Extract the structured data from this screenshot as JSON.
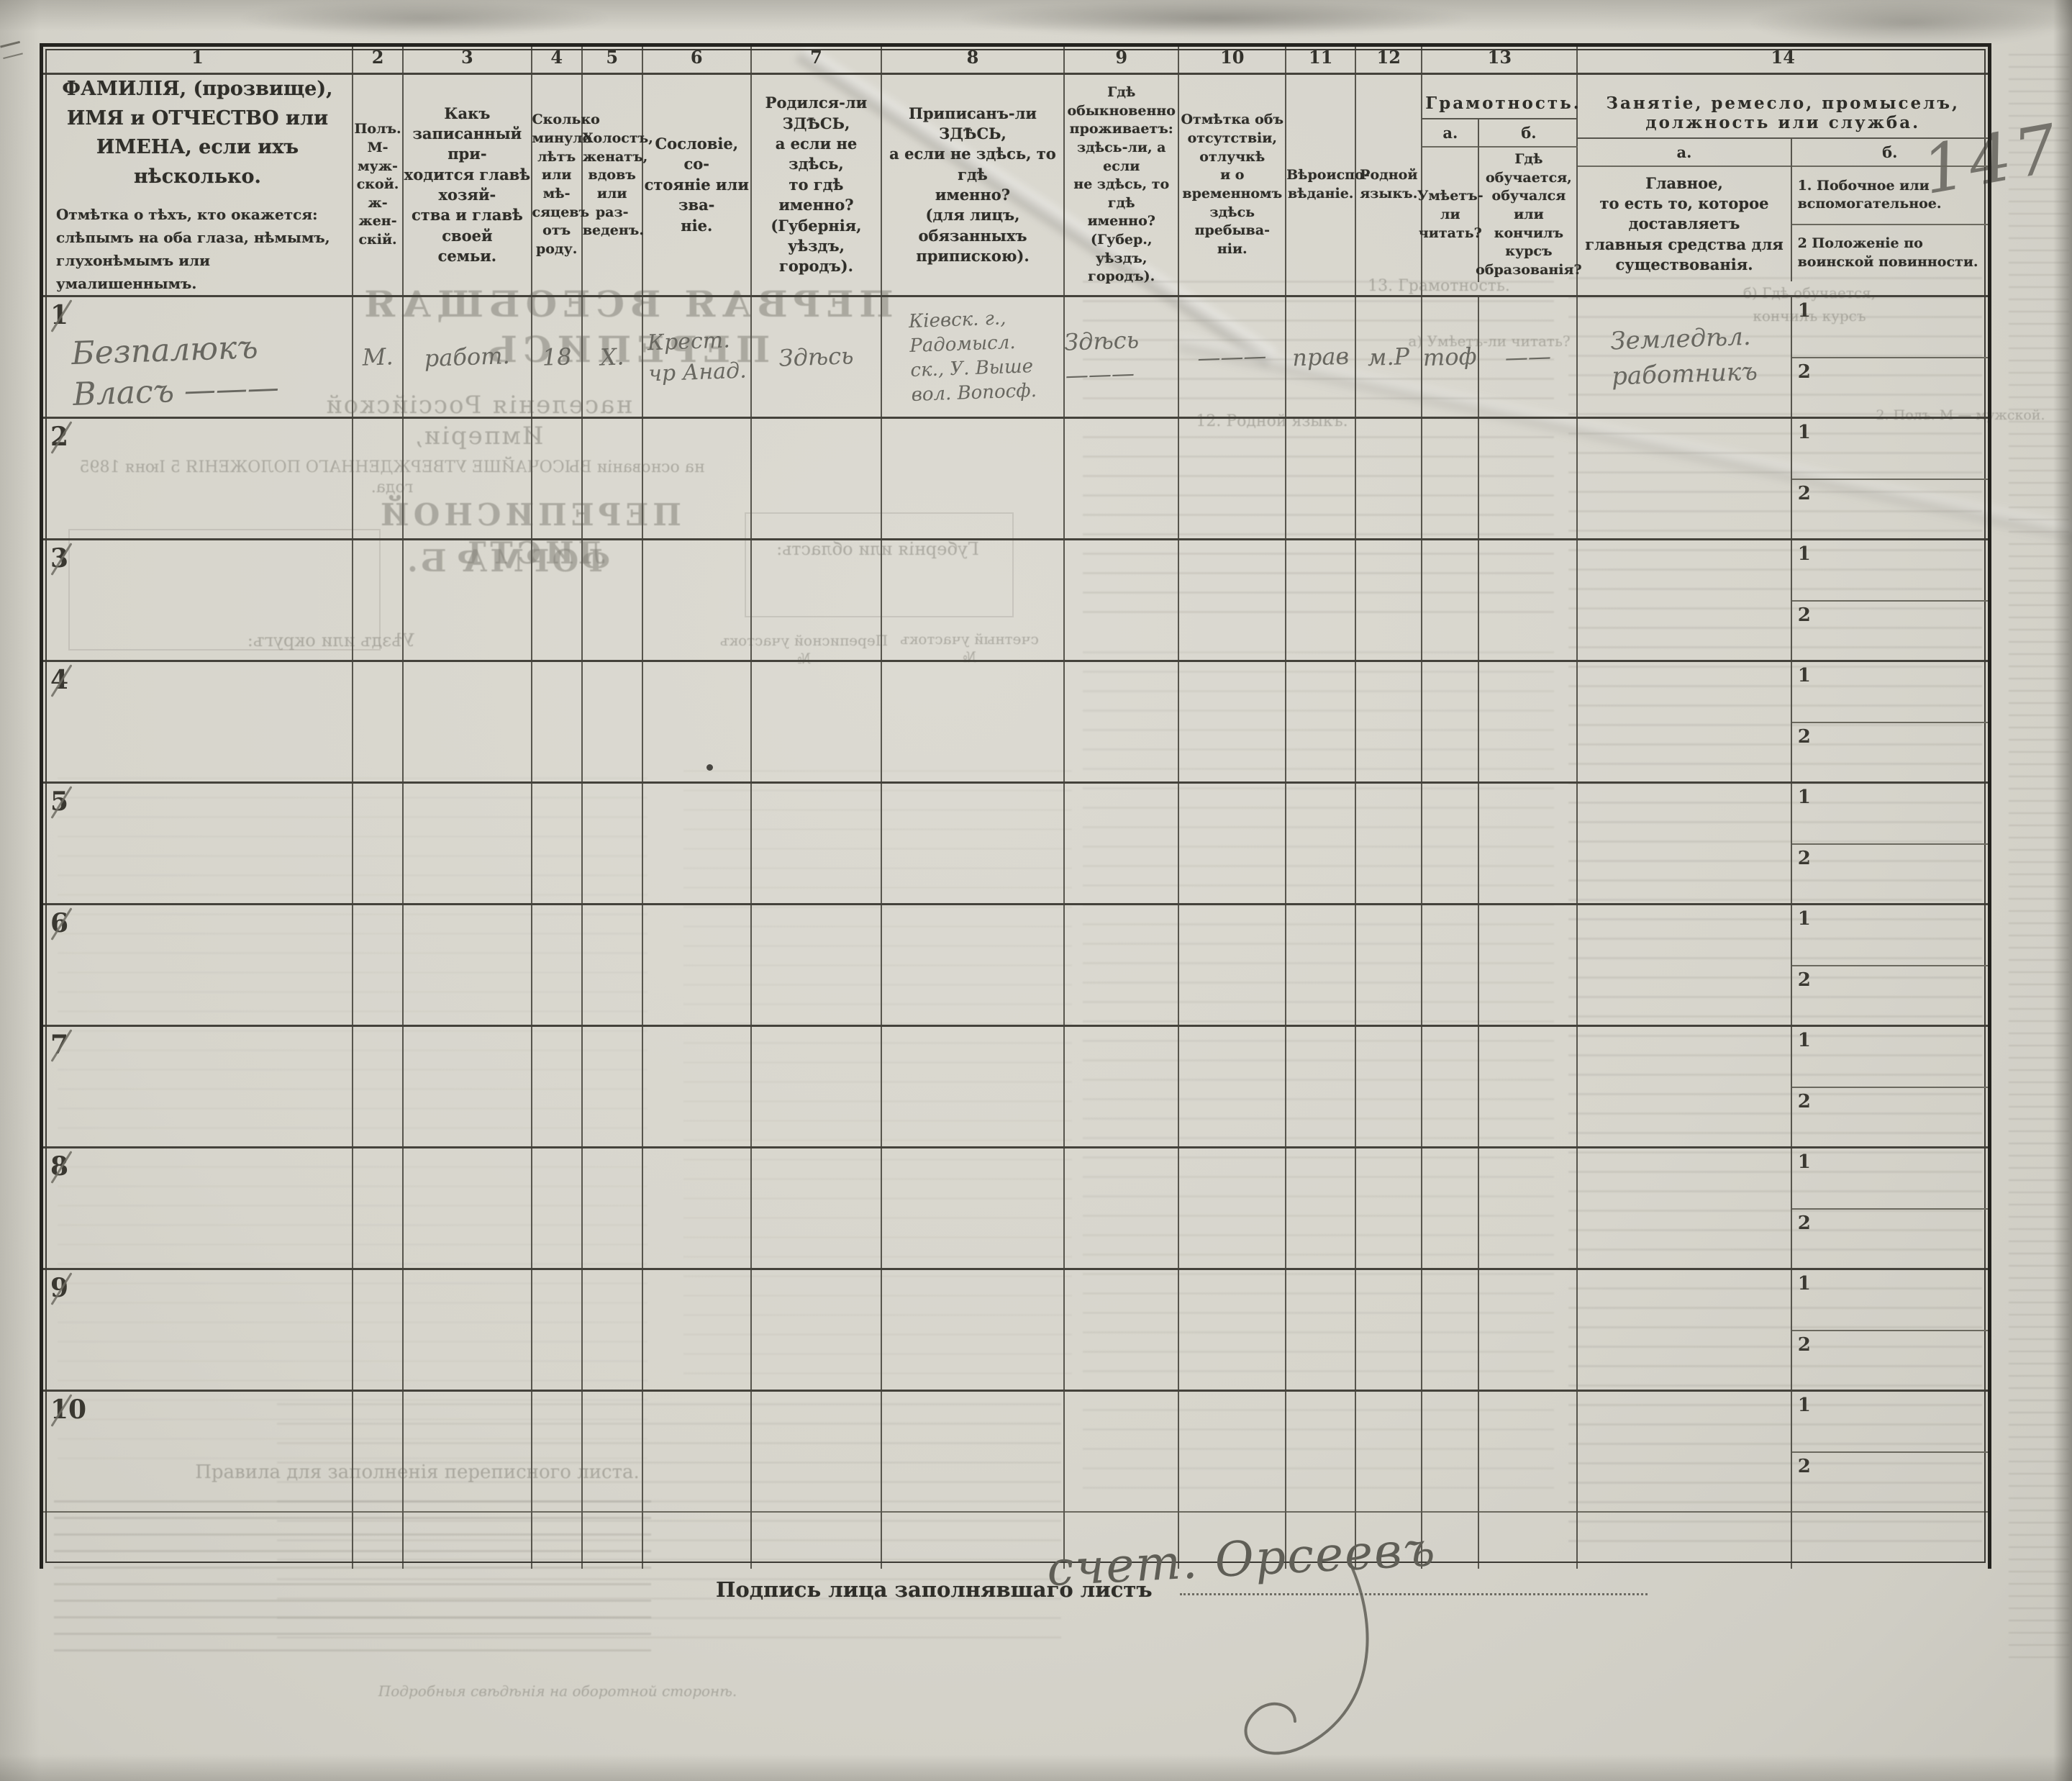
{
  "sheet": {
    "page_number_handwritten": "147",
    "signature": {
      "label": "Подпись лица заполнявшаго листъ",
      "value": "счет. Орсеевъ"
    }
  },
  "table": {
    "col_numbers": [
      "1",
      "2",
      "3",
      "4",
      "5",
      "6",
      "7",
      "8",
      "9",
      "10",
      "11",
      "12",
      "13",
      "14"
    ],
    "headers": {
      "c1_title": "ФАМИЛІЯ, (прозвище), ИМЯ и ОТЧЕСТВО или ИМЕНА, если ихъ нѣсколько.",
      "c1_note": "Отмѣтка о тѣхъ, кто окажется: слѣпымъ на оба глаза, нѣмымъ, глухонѣмымъ или умалишеннымъ.",
      "c2": "Полъ.\nМ-муж-\nской.\nж-жен-\nскій.",
      "c3": "Какъ записанный при-\nходится главѣ хозяй-\nства и главѣ своей\nсемьи.",
      "c4": "Сколько\nминуло\nлѣтъ\nили мѣ-\nсяцевъ\nотъ роду.",
      "c5": "Холостъ,\nженатъ,\nвдовъ\nили раз-\nведенъ.",
      "c6": "Сословіе, со-\nстояніе или зва-\nніе.",
      "c7": "Родился-ли ЗДѢСЬ,\nа если не здѣсь,\nто гдѣ именно?\n(Губернія, уѣздъ, городъ).",
      "c8": "Приписанъ-ли ЗДѢСЬ,\nа если не здѣсь, то гдѣ\nименно?\n(для лицъ, обязанныхъ\nприпискою).",
      "c9": "Гдѣ обыкновенно\nпроживаетъ:\nздѣсь-ли, а если\nне здѣсь, то гдѣ\nименно?\n(Губер., уѣздъ, городъ).",
      "c10": "Отмѣтка объ\nотсутствіи, отлучкѣ\nи о временномъ\nздѣсь пребыва-\nніи.",
      "c11": "Вѣроиспо-\nвѣданіе.",
      "c12": "Родной\nязыкъ.",
      "c13_title": "Грамотность.",
      "c13a_label": "а.",
      "c13a": "Умѣетъ-\nли\nчитать?",
      "c13b_label": "б.",
      "c13b": "Гдѣ обучается,\nобучался или\nкончилъ курсъ\nобразованія?",
      "c14_title": "Занятіе, ремесло, промыселъ, должность или служба.",
      "c14a_label": "а.",
      "c14a": "Главное,\nто есть то, которое доставляетъ\nглавныя средства для существованія.",
      "c14b_label": "б.",
      "c14b_row1": "1. Побочное или вспомогательное.",
      "c14b_row2": "2 Положеніе по воинской повинности.",
      "c14b_sub1": "1",
      "c14b_sub2": "2"
    },
    "rows": [
      {
        "num": "1",
        "name": "Безпалюкъ\nВласъ ———",
        "sex": "М.",
        "relation": "работ.",
        "age": "18",
        "marital": "Х.",
        "estate": "Крест.\nчр Анад.",
        "birthplace": "Здѣсь",
        "registered": "Кіевск. г.,\nРадомысл.\nск., У. Выше\nвол. Вопосф.",
        "residence": "Здѣсь ———",
        "absence": "———",
        "faith": "прав",
        "language": "м.Р",
        "literacy_read": "тоф",
        "literacy_edu": "——",
        "occupation_main": "Земледѣл.\nработникъ",
        "occupation_side": "",
        "military": ""
      },
      {
        "num": "2",
        "name": "",
        "sex": "",
        "relation": "",
        "age": "",
        "marital": "",
        "estate": "",
        "birthplace": "",
        "registered": "",
        "residence": "",
        "absence": "",
        "faith": "",
        "language": "",
        "literacy_read": "",
        "literacy_edu": "",
        "occupation_main": "",
        "occupation_side": "",
        "military": ""
      },
      {
        "num": "3",
        "name": "",
        "sex": "",
        "relation": "",
        "age": "",
        "marital": "",
        "estate": "",
        "birthplace": "",
        "registered": "",
        "residence": "",
        "absence": "",
        "faith": "",
        "language": "",
        "literacy_read": "",
        "literacy_edu": "",
        "occupation_main": "",
        "occupation_side": "",
        "military": ""
      },
      {
        "num": "4",
        "name": "",
        "sex": "",
        "relation": "",
        "age": "",
        "marital": "",
        "estate": "",
        "birthplace": "",
        "registered": "",
        "residence": "",
        "absence": "",
        "faith": "",
        "language": "",
        "literacy_read": "",
        "literacy_edu": "",
        "occupation_main": "",
        "occupation_side": "",
        "military": ""
      },
      {
        "num": "5",
        "name": "",
        "sex": "",
        "relation": "",
        "age": "",
        "marital": "",
        "estate": "",
        "birthplace": "",
        "registered": "",
        "residence": "",
        "absence": "",
        "faith": "",
        "language": "",
        "literacy_read": "",
        "literacy_edu": "",
        "occupation_main": "",
        "occupation_side": "",
        "military": ""
      },
      {
        "num": "6",
        "name": "",
        "sex": "",
        "relation": "",
        "age": "",
        "marital": "",
        "estate": "",
        "birthplace": "",
        "registered": "",
        "residence": "",
        "absence": "",
        "faith": "",
        "language": "",
        "literacy_read": "",
        "literacy_edu": "",
        "occupation_main": "",
        "occupation_side": "",
        "military": ""
      },
      {
        "num": "7",
        "name": "",
        "sex": "",
        "relation": "",
        "age": "",
        "marital": "",
        "estate": "",
        "birthplace": "",
        "registered": "",
        "residence": "",
        "absence": "",
        "faith": "",
        "language": "",
        "literacy_read": "",
        "literacy_edu": "",
        "occupation_main": "",
        "occupation_side": "",
        "military": ""
      },
      {
        "num": "8",
        "name": "",
        "sex": "",
        "relation": "",
        "age": "",
        "marital": "",
        "estate": "",
        "birthplace": "",
        "registered": "",
        "residence": "",
        "absence": "",
        "faith": "",
        "language": "",
        "literacy_read": "",
        "literacy_edu": "",
        "occupation_main": "",
        "occupation_side": "",
        "military": ""
      },
      {
        "num": "9",
        "name": "",
        "sex": "",
        "relation": "",
        "age": "",
        "marital": "",
        "estate": "",
        "birthplace": "",
        "registered": "",
        "residence": "",
        "absence": "",
        "faith": "",
        "language": "",
        "literacy_read": "",
        "literacy_edu": "",
        "occupation_main": "",
        "occupation_side": "",
        "military": ""
      },
      {
        "num": "10",
        "name": "",
        "sex": "",
        "relation": "",
        "age": "",
        "marital": "",
        "estate": "",
        "birthplace": "",
        "registered": "",
        "residence": "",
        "absence": "",
        "faith": "",
        "language": "",
        "literacy_read": "",
        "literacy_edu": "",
        "occupation_main": "",
        "occupation_side": "",
        "military": ""
      }
    ]
  },
  "ghosts": {
    "mirrored": [
      {
        "text": "ПЕРВАЯ ВСЕОБЩАЯ ПЕРЕПИСЬ"
      },
      {
        "text": "населенія Россійской Имперіи,"
      },
      {
        "text": "на основаніи ВЫСОЧАЙШЕ УТВЕРЖДЕННАГО ПОЛОЖЕНІЯ 5 Іюня 1895 года."
      },
      {
        "text": "ПЕРЕПИСНОЙ ЛИСТЪ"
      },
      {
        "text": "ФОРМА Б."
      },
      {
        "text": "Губернія или область:"
      },
      {
        "text": "Уѣздъ или округъ:"
      },
      {
        "text": "Переписной участокъ №"
      },
      {
        "text": "счетный участокъ №"
      }
    ],
    "fragments": [
      {
        "text": "13. Грамотность."
      },
      {
        "text": "а) Умѣетъ-ли читать?"
      },
      {
        "text": "б) Гдѣ обучается,"
      },
      {
        "text": "кончилъ курсъ"
      },
      {
        "text": "12. Родной языкъ."
      },
      {
        "text": "Правила для заполненія переписного листа."
      },
      {
        "text": "2. Полъ. М — мужской."
      },
      {
        "text": "Подробныя свѣдѣнія на оборотной сторонѣ."
      }
    ]
  }
}
